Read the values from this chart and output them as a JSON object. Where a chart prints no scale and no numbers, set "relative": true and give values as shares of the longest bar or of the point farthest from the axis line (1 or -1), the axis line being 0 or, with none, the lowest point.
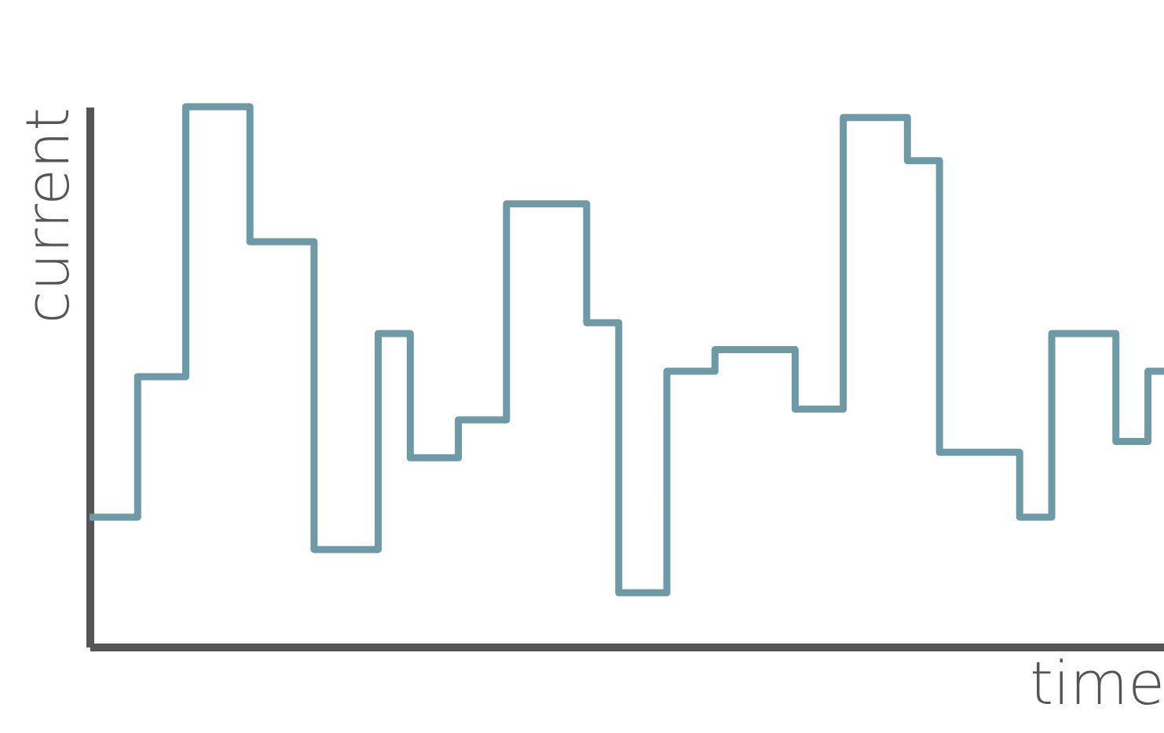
{
  "chart_data": {
    "type": "step",
    "xlabel": "time",
    "ylabel": "current",
    "relative": true,
    "grid": false,
    "tick_labels": false,
    "categories": [
      null,
      null,
      null,
      null,
      null,
      null,
      null,
      null,
      null,
      null,
      null,
      null,
      null,
      null,
      null,
      null,
      null,
      null,
      null,
      null,
      null,
      null,
      null,
      null,
      null,
      null,
      null,
      null,
      null,
      null,
      null,
      null,
      null,
      null,
      null,
      null,
      null,
      null,
      null,
      null,
      null,
      null,
      null,
      null,
      null,
      null,
      null,
      null,
      null,
      null,
      null,
      null,
      null,
      null,
      null,
      null,
      null,
      null,
      null,
      null,
      null,
      null,
      null,
      null,
      null,
      null,
      null,
      null
    ],
    "series": [
      {
        "color": "#6e9aa8",
        "values": [
          0.24,
          0.24,
          0.24,
          0.5,
          0.5,
          0.5,
          1,
          1,
          1,
          1,
          0.75,
          0.75,
          0.75,
          0.75,
          0.18,
          0.18,
          0.18,
          0.18,
          0.58,
          0.58,
          0.35,
          0.35,
          0.35,
          0.42,
          0.42,
          0.42,
          0.82,
          0.82,
          0.82,
          0.82,
          0.82,
          0.6,
          0.6,
          0.1,
          0.1,
          0.1,
          0.51,
          0.51,
          0.51,
          0.55,
          0.55,
          0.55,
          0.55,
          0.55,
          0.44,
          0.44,
          0.44,
          0.98,
          0.98,
          0.98,
          0.98,
          0.9,
          0.9,
          0.36,
          0.36,
          0.36,
          0.36,
          0.36,
          0.24,
          0.24,
          0.58,
          0.58,
          0.58,
          0.58,
          0.38,
          0.38,
          0.51,
          0.51
        ]
      }
    ]
  }
}
